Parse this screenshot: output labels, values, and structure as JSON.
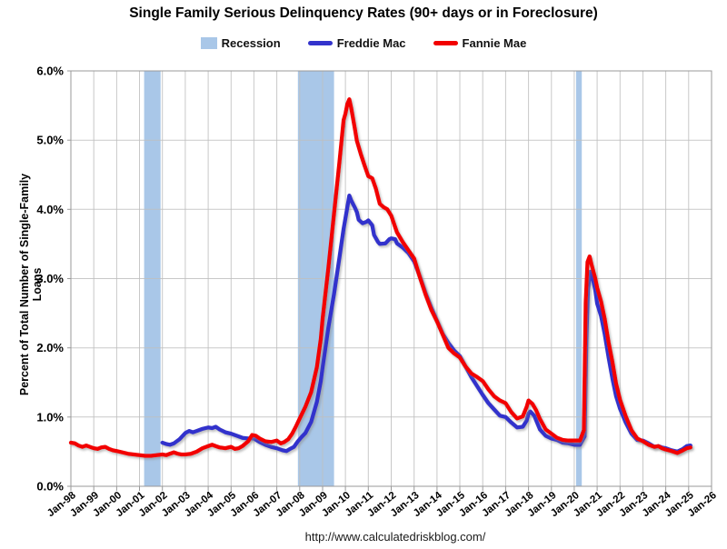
{
  "header": {
    "title": "Single Family Serious Delinquency Rates (90+ days or in Foreclosure)"
  },
  "legend": {
    "items": [
      {
        "label": "Recession",
        "swatch": "box"
      },
      {
        "label": "Freddie Mac",
        "swatch": "line"
      },
      {
        "label": "Fannie Mae",
        "swatch": "line"
      }
    ]
  },
  "footer": {
    "url": "http://www.calculatedriskblog.com/"
  },
  "chart_data": {
    "type": "line",
    "title": "Single Family Serious Delinquency Rates (90+ days or in Foreclosure)",
    "xlabel": "",
    "ylabel": "Percent of Total Number of Single-Family Loans",
    "x_range": [
      1998.0,
      2026.0
    ],
    "ylim": [
      0,
      6
    ],
    "grid": true,
    "legend_position": "top",
    "band_color": "#a9c7e8",
    "grid_color": "#bfbfbf",
    "frame_color": "#9a9a9a",
    "y_ticks": [
      [
        0,
        "0.0%"
      ],
      [
        1,
        "1.0%"
      ],
      [
        2,
        "2.0%"
      ],
      [
        3,
        "3.0%"
      ],
      [
        4,
        "4.0%"
      ],
      [
        5,
        "5.0%"
      ],
      [
        6,
        "6.0%"
      ]
    ],
    "x_ticks": [
      [
        1998,
        "Jan-98"
      ],
      [
        1999,
        "Jan-99"
      ],
      [
        2000,
        "Jan-00"
      ],
      [
        2001,
        "Jan-01"
      ],
      [
        2002,
        "Jan-02"
      ],
      [
        2003,
        "Jan-03"
      ],
      [
        2004,
        "Jan-04"
      ],
      [
        2005,
        "Jan-05"
      ],
      [
        2006,
        "Jan-06"
      ],
      [
        2007,
        "Jan-07"
      ],
      [
        2008,
        "Jan-08"
      ],
      [
        2009,
        "Jan-09"
      ],
      [
        2010,
        "Jan-10"
      ],
      [
        2011,
        "Jan-11"
      ],
      [
        2012,
        "Jan-12"
      ],
      [
        2013,
        "Jan-13"
      ],
      [
        2014,
        "Jan-14"
      ],
      [
        2015,
        "Jan-15"
      ],
      [
        2016,
        "Jan-16"
      ],
      [
        2017,
        "Jan-17"
      ],
      [
        2018,
        "Jan-18"
      ],
      [
        2019,
        "Jan-19"
      ],
      [
        2020,
        "Jan-20"
      ],
      [
        2021,
        "Jan-21"
      ],
      [
        2022,
        "Jan-22"
      ],
      [
        2023,
        "Jan-23"
      ],
      [
        2024,
        "Jan-24"
      ],
      [
        2025,
        "Jan-25"
      ],
      [
        2026,
        "Jan-26"
      ]
    ],
    "recession_bands": [
      [
        2001.2,
        2001.92
      ],
      [
        2007.92,
        2009.5
      ],
      [
        2020.08,
        2020.33
      ]
    ],
    "series": [
      {
        "name": "Freddie Mac",
        "color": "#3333cc",
        "points": [
          [
            2002.0,
            0.63
          ],
          [
            2002.17,
            0.61
          ],
          [
            2002.33,
            0.6
          ],
          [
            2002.5,
            0.62
          ],
          [
            2002.75,
            0.68
          ],
          [
            2003.0,
            0.77
          ],
          [
            2003.17,
            0.8
          ],
          [
            2003.33,
            0.78
          ],
          [
            2003.5,
            0.8
          ],
          [
            2003.75,
            0.83
          ],
          [
            2004.0,
            0.85
          ],
          [
            2004.17,
            0.84
          ],
          [
            2004.33,
            0.86
          ],
          [
            2004.5,
            0.82
          ],
          [
            2004.75,
            0.78
          ],
          [
            2005.0,
            0.76
          ],
          [
            2005.25,
            0.73
          ],
          [
            2005.5,
            0.7
          ],
          [
            2005.75,
            0.69
          ],
          [
            2006.0,
            0.69
          ],
          [
            2006.25,
            0.64
          ],
          [
            2006.5,
            0.6
          ],
          [
            2006.75,
            0.57
          ],
          [
            2007.0,
            0.55
          ],
          [
            2007.25,
            0.52
          ],
          [
            2007.42,
            0.51
          ],
          [
            2007.58,
            0.54
          ],
          [
            2007.75,
            0.57
          ],
          [
            2007.92,
            0.65
          ],
          [
            2008.08,
            0.71
          ],
          [
            2008.25,
            0.77
          ],
          [
            2008.5,
            0.93
          ],
          [
            2008.75,
            1.22
          ],
          [
            2008.92,
            1.52
          ],
          [
            2009.0,
            1.72
          ],
          [
            2009.25,
            2.29
          ],
          [
            2009.5,
            2.78
          ],
          [
            2009.75,
            3.33
          ],
          [
            2009.92,
            3.72
          ],
          [
            2010.0,
            3.87
          ],
          [
            2010.08,
            4.03
          ],
          [
            2010.17,
            4.2
          ],
          [
            2010.25,
            4.13
          ],
          [
            2010.42,
            4.02
          ],
          [
            2010.5,
            3.96
          ],
          [
            2010.58,
            3.85
          ],
          [
            2010.75,
            3.8
          ],
          [
            2010.92,
            3.82
          ],
          [
            2011.0,
            3.84
          ],
          [
            2011.17,
            3.77
          ],
          [
            2011.25,
            3.63
          ],
          [
            2011.42,
            3.53
          ],
          [
            2011.5,
            3.5
          ],
          [
            2011.75,
            3.51
          ],
          [
            2011.92,
            3.57
          ],
          [
            2012.0,
            3.58
          ],
          [
            2012.17,
            3.57
          ],
          [
            2012.25,
            3.51
          ],
          [
            2012.5,
            3.45
          ],
          [
            2012.75,
            3.37
          ],
          [
            2013.0,
            3.25
          ],
          [
            2013.25,
            3.03
          ],
          [
            2013.5,
            2.79
          ],
          [
            2013.75,
            2.58
          ],
          [
            2014.0,
            2.39
          ],
          [
            2014.25,
            2.2
          ],
          [
            2014.5,
            2.07
          ],
          [
            2014.75,
            1.96
          ],
          [
            2015.0,
            1.88
          ],
          [
            2015.25,
            1.73
          ],
          [
            2015.5,
            1.58
          ],
          [
            2015.75,
            1.45
          ],
          [
            2016.0,
            1.32
          ],
          [
            2016.25,
            1.2
          ],
          [
            2016.5,
            1.11
          ],
          [
            2016.75,
            1.02
          ],
          [
            2017.0,
            1.0
          ],
          [
            2017.25,
            0.92
          ],
          [
            2017.5,
            0.85
          ],
          [
            2017.75,
            0.86
          ],
          [
            2017.92,
            0.95
          ],
          [
            2018.0,
            1.05
          ],
          [
            2018.08,
            1.08
          ],
          [
            2018.25,
            1.02
          ],
          [
            2018.5,
            0.82
          ],
          [
            2018.75,
            0.73
          ],
          [
            2019.0,
            0.69
          ],
          [
            2019.25,
            0.67
          ],
          [
            2019.5,
            0.63
          ],
          [
            2019.75,
            0.62
          ],
          [
            2020.0,
            0.6
          ],
          [
            2020.25,
            0.6
          ],
          [
            2020.45,
            0.72
          ],
          [
            2020.53,
            2.14
          ],
          [
            2020.6,
            2.85
          ],
          [
            2020.7,
            3.1
          ],
          [
            2020.78,
            3.04
          ],
          [
            2020.92,
            2.83
          ],
          [
            2021.0,
            2.64
          ],
          [
            2021.17,
            2.46
          ],
          [
            2021.33,
            2.2
          ],
          [
            2021.5,
            1.86
          ],
          [
            2021.67,
            1.55
          ],
          [
            2021.83,
            1.3
          ],
          [
            2022.0,
            1.12
          ],
          [
            2022.25,
            0.92
          ],
          [
            2022.5,
            0.76
          ],
          [
            2022.75,
            0.67
          ],
          [
            2023.0,
            0.66
          ],
          [
            2023.25,
            0.62
          ],
          [
            2023.5,
            0.57
          ],
          [
            2023.67,
            0.58
          ],
          [
            2023.83,
            0.56
          ],
          [
            2024.0,
            0.55
          ],
          [
            2024.25,
            0.52
          ],
          [
            2024.5,
            0.5
          ],
          [
            2024.75,
            0.54
          ],
          [
            2024.92,
            0.58
          ],
          [
            2025.08,
            0.59
          ]
        ]
      },
      {
        "name": "Fannie Mae",
        "color": "#f20000",
        "points": [
          [
            1998.0,
            0.63
          ],
          [
            1998.17,
            0.62
          ],
          [
            1998.33,
            0.59
          ],
          [
            1998.5,
            0.57
          ],
          [
            1998.67,
            0.59
          ],
          [
            1998.83,
            0.57
          ],
          [
            1999.0,
            0.55
          ],
          [
            1999.17,
            0.54
          ],
          [
            1999.33,
            0.56
          ],
          [
            1999.5,
            0.57
          ],
          [
            1999.67,
            0.54
          ],
          [
            1999.83,
            0.52
          ],
          [
            2000.0,
            0.51
          ],
          [
            2000.25,
            0.49
          ],
          [
            2000.5,
            0.47
          ],
          [
            2000.75,
            0.46
          ],
          [
            2001.0,
            0.45
          ],
          [
            2001.25,
            0.44
          ],
          [
            2001.5,
            0.44
          ],
          [
            2001.75,
            0.45
          ],
          [
            2002.0,
            0.46
          ],
          [
            2002.17,
            0.45
          ],
          [
            2002.33,
            0.47
          ],
          [
            2002.5,
            0.49
          ],
          [
            2002.67,
            0.47
          ],
          [
            2002.83,
            0.46
          ],
          [
            2003.0,
            0.46
          ],
          [
            2003.25,
            0.47
          ],
          [
            2003.5,
            0.5
          ],
          [
            2003.75,
            0.55
          ],
          [
            2004.0,
            0.58
          ],
          [
            2004.17,
            0.6
          ],
          [
            2004.33,
            0.58
          ],
          [
            2004.5,
            0.56
          ],
          [
            2004.75,
            0.55
          ],
          [
            2005.0,
            0.57
          ],
          [
            2005.17,
            0.54
          ],
          [
            2005.33,
            0.55
          ],
          [
            2005.5,
            0.58
          ],
          [
            2005.75,
            0.65
          ],
          [
            2005.92,
            0.74
          ],
          [
            2006.08,
            0.73
          ],
          [
            2006.25,
            0.69
          ],
          [
            2006.5,
            0.65
          ],
          [
            2006.75,
            0.64
          ],
          [
            2007.0,
            0.66
          ],
          [
            2007.17,
            0.62
          ],
          [
            2007.33,
            0.64
          ],
          [
            2007.5,
            0.68
          ],
          [
            2007.67,
            0.76
          ],
          [
            2007.83,
            0.86
          ],
          [
            2008.0,
            0.98
          ],
          [
            2008.25,
            1.15
          ],
          [
            2008.5,
            1.36
          ],
          [
            2008.75,
            1.72
          ],
          [
            2008.92,
            2.13
          ],
          [
            2009.0,
            2.42
          ],
          [
            2009.25,
            3.15
          ],
          [
            2009.5,
            3.94
          ],
          [
            2009.75,
            4.72
          ],
          [
            2009.92,
            5.29
          ],
          [
            2010.0,
            5.38
          ],
          [
            2010.08,
            5.52
          ],
          [
            2010.17,
            5.59
          ],
          [
            2010.25,
            5.47
          ],
          [
            2010.42,
            5.15
          ],
          [
            2010.5,
            4.99
          ],
          [
            2010.67,
            4.8
          ],
          [
            2010.83,
            4.64
          ],
          [
            2011.0,
            4.48
          ],
          [
            2011.17,
            4.45
          ],
          [
            2011.33,
            4.3
          ],
          [
            2011.5,
            4.08
          ],
          [
            2011.67,
            4.03
          ],
          [
            2011.83,
            4.0
          ],
          [
            2012.0,
            3.91
          ],
          [
            2012.25,
            3.67
          ],
          [
            2012.5,
            3.53
          ],
          [
            2012.75,
            3.41
          ],
          [
            2013.0,
            3.29
          ],
          [
            2013.25,
            3.02
          ],
          [
            2013.5,
            2.77
          ],
          [
            2013.75,
            2.55
          ],
          [
            2014.0,
            2.38
          ],
          [
            2014.25,
            2.19
          ],
          [
            2014.5,
            2.0
          ],
          [
            2014.75,
            1.92
          ],
          [
            2015.0,
            1.86
          ],
          [
            2015.25,
            1.73
          ],
          [
            2015.5,
            1.63
          ],
          [
            2015.75,
            1.58
          ],
          [
            2016.0,
            1.52
          ],
          [
            2016.25,
            1.4
          ],
          [
            2016.5,
            1.3
          ],
          [
            2016.75,
            1.24
          ],
          [
            2017.0,
            1.2
          ],
          [
            2017.25,
            1.07
          ],
          [
            2017.5,
            0.98
          ],
          [
            2017.75,
            1.01
          ],
          [
            2017.92,
            1.15
          ],
          [
            2018.0,
            1.24
          ],
          [
            2018.17,
            1.19
          ],
          [
            2018.33,
            1.1
          ],
          [
            2018.5,
            0.97
          ],
          [
            2018.75,
            0.82
          ],
          [
            2019.0,
            0.76
          ],
          [
            2019.25,
            0.7
          ],
          [
            2019.5,
            0.67
          ],
          [
            2019.75,
            0.66
          ],
          [
            2020.0,
            0.66
          ],
          [
            2020.25,
            0.66
          ],
          [
            2020.42,
            0.81
          ],
          [
            2020.5,
            2.65
          ],
          [
            2020.58,
            3.24
          ],
          [
            2020.67,
            3.32
          ],
          [
            2020.75,
            3.21
          ],
          [
            2020.92,
            3.0
          ],
          [
            2021.0,
            2.87
          ],
          [
            2021.17,
            2.67
          ],
          [
            2021.33,
            2.42
          ],
          [
            2021.5,
            2.08
          ],
          [
            2021.67,
            1.79
          ],
          [
            2021.83,
            1.48
          ],
          [
            2022.0,
            1.25
          ],
          [
            2022.25,
            1.01
          ],
          [
            2022.5,
            0.81
          ],
          [
            2022.75,
            0.69
          ],
          [
            2023.0,
            0.65
          ],
          [
            2023.25,
            0.6
          ],
          [
            2023.5,
            0.57
          ],
          [
            2023.67,
            0.58
          ],
          [
            2023.83,
            0.55
          ],
          [
            2024.0,
            0.53
          ],
          [
            2024.25,
            0.51
          ],
          [
            2024.5,
            0.48
          ],
          [
            2024.75,
            0.52
          ],
          [
            2024.92,
            0.55
          ],
          [
            2025.08,
            0.56
          ]
        ]
      }
    ]
  }
}
